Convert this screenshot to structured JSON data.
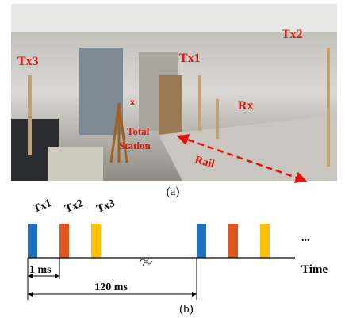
{
  "photo": {
    "labels": {
      "tx3": "Tx3",
      "tx1": "Tx1",
      "tx2": "Tx2",
      "rx": "Rx",
      "x": "x",
      "station1": "Total",
      "station2": "Station",
      "rail": "Rail"
    },
    "caption": "(a)"
  },
  "timing": {
    "tx1": "Tx1",
    "tx2": "Tx2",
    "tx3": "Tx3",
    "short": "1 ms",
    "period": "120 ms",
    "axis": "Time",
    "more": "...",
    "caption": "(b)"
  }
}
